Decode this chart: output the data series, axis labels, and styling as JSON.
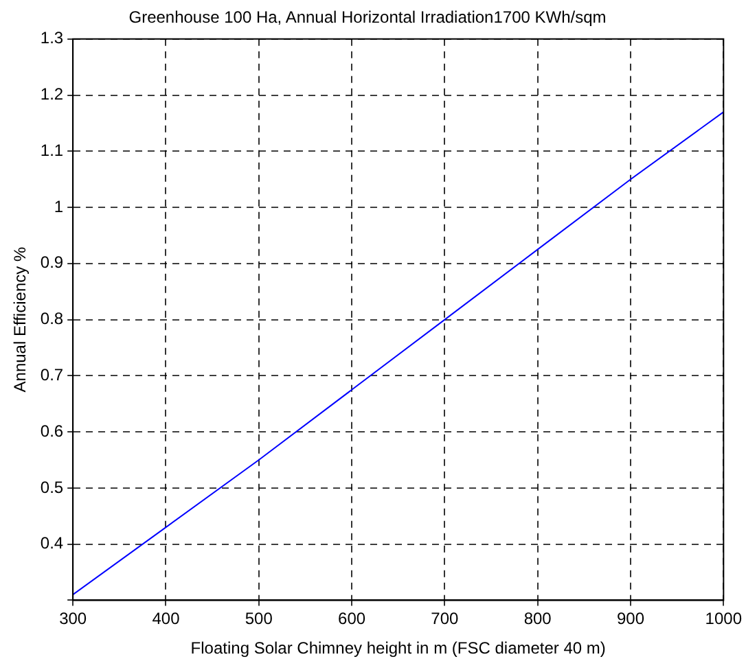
{
  "chart_data": {
    "type": "line",
    "title": "Greenhouse 100 Ha, Annual Horizontal Irradiation1700 KWh/sqm",
    "xlabel": "Floating Solar Chimney height in m (FSC diameter 40 m)",
    "ylabel": "Annual Efficiency %",
    "x": [
      300,
      400,
      500,
      600,
      700,
      800,
      900,
      1000
    ],
    "series": [
      {
        "color": "#0000ff",
        "values": [
          0.31,
          0.43,
          0.55,
          0.675,
          0.8,
          0.925,
          1.05,
          1.17
        ]
      }
    ],
    "xlim": [
      300,
      1000
    ],
    "xticks": [
      300,
      400,
      500,
      600,
      700,
      800,
      900,
      1000
    ],
    "ylim": [
      0.3,
      1.3
    ],
    "yticks": [
      {
        "value": 0.3,
        "label": null
      },
      0.4,
      0.5,
      0.6,
      0.7,
      0.8,
      0.9,
      1,
      1.1,
      1.2,
      1.3
    ],
    "grid": true,
    "line_style": "solid",
    "marker": "none",
    "legend": false
  }
}
